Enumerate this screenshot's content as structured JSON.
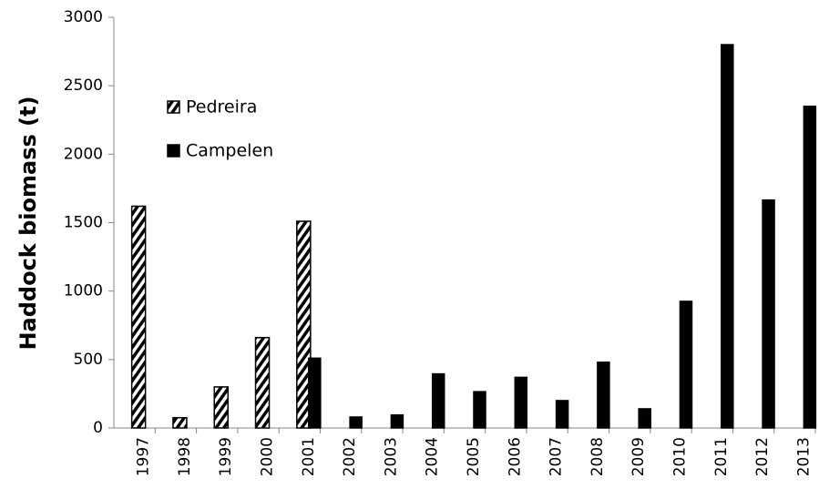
{
  "chart_data": {
    "type": "bar",
    "y_label": "Haddock biomass (t)",
    "categories": [
      "1997",
      "1998",
      "1999",
      "2000",
      "2001",
      "2002",
      "2003",
      "2004",
      "2005",
      "2006",
      "2007",
      "2008",
      "2009",
      "2010",
      "2011",
      "2012",
      "2013"
    ],
    "series": [
      {
        "name": "Pedreira",
        "color": "#000000",
        "pattern": "hatch",
        "values": [
          1620,
          75,
          300,
          660,
          1510,
          null,
          null,
          null,
          null,
          null,
          null,
          null,
          null,
          null,
          null,
          null,
          null
        ]
      },
      {
        "name": "Campelen",
        "color": "#000000",
        "pattern": "solid",
        "values": [
          null,
          null,
          null,
          null,
          510,
          80,
          95,
          395,
          265,
          370,
          200,
          480,
          140,
          925,
          2800,
          1665,
          2350
        ]
      }
    ],
    "ylim": [
      0,
      3000
    ],
    "yticks": [
      0,
      500,
      1000,
      1500,
      2000,
      2500,
      3000
    ],
    "grid": false
  }
}
